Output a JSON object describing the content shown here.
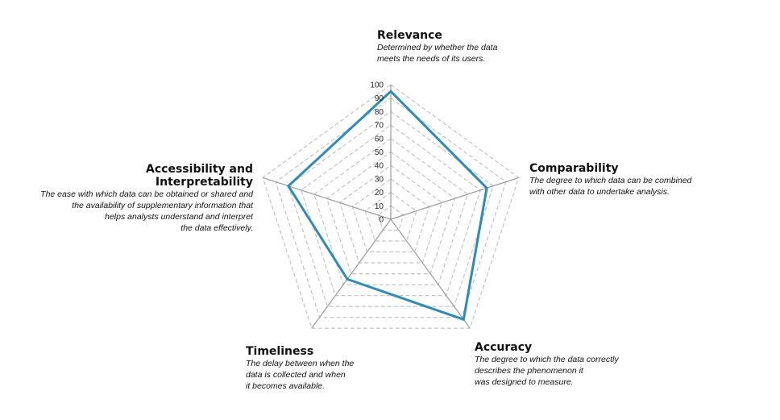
{
  "chart_data": {
    "type": "radar",
    "r_range": [
      0,
      100
    ],
    "r_ticks": [
      0,
      10,
      20,
      30,
      40,
      50,
      60,
      70,
      80,
      90,
      100
    ],
    "grid": true,
    "series_color": "#2a8bbd",
    "axes": [
      {
        "name": "Relevance",
        "description_lines": [
          "Determined by whether the data",
          "meets the needs of its users."
        ]
      },
      {
        "name": "Comparability",
        "description_lines": [
          "The degree to which data can be combined",
          "with other data to undertake analysis."
        ]
      },
      {
        "name": "Accuracy",
        "description_lines": [
          "The degree to which the data correctly",
          "describes the phenomenon it",
          "was designed to measure."
        ]
      },
      {
        "name": "Timeliness",
        "description_lines": [
          "The delay between when the",
          "data is collected and when",
          "it becomes available."
        ]
      },
      {
        "name": "Accessibility and Interpretability",
        "name_lines": [
          "Accessibility and",
          "Interpretability"
        ],
        "description_lines": [
          "The ease with which data can be obtained or shared and",
          "the availability of supplementary information that",
          "helps analysts understand and interpret",
          "the data effectively."
        ]
      }
    ],
    "series": [
      {
        "values": [
          95,
          75,
          92,
          55,
          80
        ]
      }
    ]
  }
}
